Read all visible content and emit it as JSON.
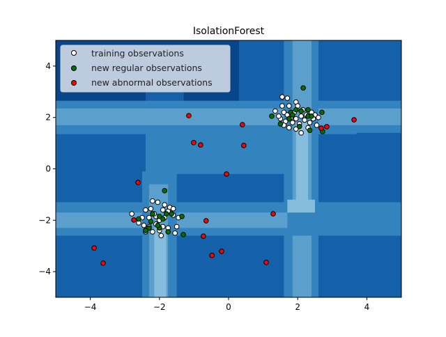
{
  "chart_data": {
    "type": "scatter",
    "title": "IsolationForest",
    "xlabel": "",
    "ylabel": "",
    "xlim": [
      -5,
      5
    ],
    "ylim": [
      -5,
      5
    ],
    "x_ticks": [
      -4,
      -2,
      0,
      2,
      4
    ],
    "y_ticks": [
      -4,
      -2,
      0,
      2,
      4
    ],
    "x_tick_labels": [
      "−4",
      "−2",
      "0",
      "2",
      "4"
    ],
    "y_tick_labels": [
      "−4",
      "−2",
      "0",
      "2",
      "4"
    ],
    "grid": false,
    "legend_position": "top-left",
    "background": "filled contour of anomaly score (Blues colormap)",
    "colors": {
      "training": "#ffffff",
      "regular": "#007000",
      "abnormal": "#ff0000",
      "contour_levels": [
        "#08468b",
        "#1561a9",
        "#3383be",
        "#5ba0cd",
        "#86bcdc"
      ]
    },
    "series": [
      {
        "name": "training observations",
        "color": "#ffffff",
        "points": [
          [
            1.55,
            2.8
          ],
          [
            1.7,
            2.75
          ],
          [
            1.75,
            2.45
          ],
          [
            1.95,
            2.6
          ],
          [
            1.35,
            2.25
          ],
          [
            1.6,
            2.2
          ],
          [
            1.7,
            2.1
          ],
          [
            1.8,
            2.0
          ],
          [
            1.5,
            1.95
          ],
          [
            1.65,
            1.85
          ],
          [
            1.85,
            1.8
          ],
          [
            1.6,
            1.7
          ],
          [
            1.75,
            1.6
          ],
          [
            1.95,
            1.55
          ],
          [
            2.1,
            1.4
          ],
          [
            2.05,
            1.75
          ],
          [
            2.2,
            1.9
          ],
          [
            2.35,
            1.8
          ],
          [
            2.5,
            2.1
          ],
          [
            2.6,
            2.0
          ],
          [
            2.4,
            2.2
          ],
          [
            2.55,
            1.7
          ],
          [
            2.3,
            1.6
          ],
          [
            2.15,
            2.3
          ],
          [
            2.0,
            2.45
          ],
          [
            1.9,
            2.2
          ],
          [
            2.25,
            2.1
          ],
          [
            1.45,
            2.05
          ],
          [
            1.55,
            2.45
          ],
          [
            2.45,
            1.95
          ],
          [
            2.1,
            2.05
          ],
          [
            1.95,
            1.95
          ],
          [
            -2.2,
            -1.25
          ],
          [
            -2.05,
            -1.3
          ],
          [
            -1.85,
            -1.4
          ],
          [
            -1.7,
            -1.5
          ],
          [
            -2.4,
            -1.6
          ],
          [
            -2.25,
            -1.55
          ],
          [
            -1.9,
            -1.6
          ],
          [
            -1.75,
            -1.65
          ],
          [
            -2.8,
            -1.75
          ],
          [
            -2.5,
            -1.9
          ],
          [
            -2.3,
            -1.9
          ],
          [
            -2.1,
            -1.85
          ],
          [
            -1.85,
            -1.9
          ],
          [
            -1.6,
            -1.8
          ],
          [
            -1.45,
            -1.9
          ],
          [
            -2.6,
            -2.1
          ],
          [
            -2.45,
            -2.2
          ],
          [
            -2.3,
            -2.25
          ],
          [
            -2.1,
            -2.15
          ],
          [
            -1.9,
            -2.25
          ],
          [
            -1.75,
            -2.3
          ],
          [
            -1.5,
            -2.25
          ],
          [
            -2.4,
            -2.45
          ],
          [
            -2.2,
            -2.45
          ],
          [
            -2.0,
            -2.4
          ],
          [
            -1.95,
            -2.6
          ],
          [
            -1.55,
            -2.5
          ],
          [
            -1.6,
            -1.55
          ],
          [
            -2.0,
            -2.0
          ],
          [
            -2.15,
            -1.75
          ]
        ]
      },
      {
        "name": "new regular observations",
        "color": "#007000",
        "points": [
          [
            2.16,
            3.15
          ],
          [
            1.8,
            2.2
          ],
          [
            1.95,
            2.3
          ],
          [
            2.1,
            2.25
          ],
          [
            2.3,
            2.3
          ],
          [
            1.75,
            1.95
          ],
          [
            1.85,
            2.1
          ],
          [
            2.3,
            2.05
          ],
          [
            2.4,
            2.05
          ],
          [
            1.25,
            2.05
          ],
          [
            1.5,
            1.75
          ],
          [
            2.05,
            1.65
          ],
          [
            2.35,
            1.5
          ],
          [
            2.7,
            2.2
          ],
          [
            2.72,
            1.45
          ],
          [
            -1.85,
            -0.85
          ],
          [
            -2.2,
            -1.75
          ],
          [
            -2.0,
            -1.85
          ],
          [
            -1.8,
            -1.75
          ],
          [
            -1.65,
            -1.75
          ],
          [
            -2.6,
            -1.95
          ],
          [
            -2.25,
            -2.05
          ],
          [
            -2.3,
            -2.3
          ],
          [
            -2.0,
            -2.3
          ],
          [
            -1.75,
            -2.45
          ],
          [
            -2.4,
            -2.4
          ],
          [
            -1.9,
            -1.95
          ],
          [
            -2.05,
            -2.2
          ],
          [
            -1.35,
            -1.85
          ],
          [
            -1.31,
            -2.56
          ]
        ]
      },
      {
        "name": "new abnormal observations",
        "color": "#ff0000",
        "points": [
          [
            -1.15,
            2.07
          ],
          [
            0.4,
            1.72
          ],
          [
            -1.01,
            1.02
          ],
          [
            -0.81,
            0.93
          ],
          [
            0.44,
            0.91
          ],
          [
            -0.06,
            -0.2
          ],
          [
            -2.62,
            -0.53
          ],
          [
            1.29,
            -1.75
          ],
          [
            -0.65,
            -2.02
          ],
          [
            -2.74,
            -1.99
          ],
          [
            -0.73,
            -2.62
          ],
          [
            -0.48,
            -3.37
          ],
          [
            -0.2,
            -3.21
          ],
          [
            1.09,
            -3.64
          ],
          [
            -3.89,
            -3.08
          ],
          [
            -3.63,
            -3.67
          ],
          [
            2.68,
            1.58
          ],
          [
            2.84,
            1.64
          ],
          [
            3.63,
            1.91
          ]
        ]
      }
    ]
  }
}
